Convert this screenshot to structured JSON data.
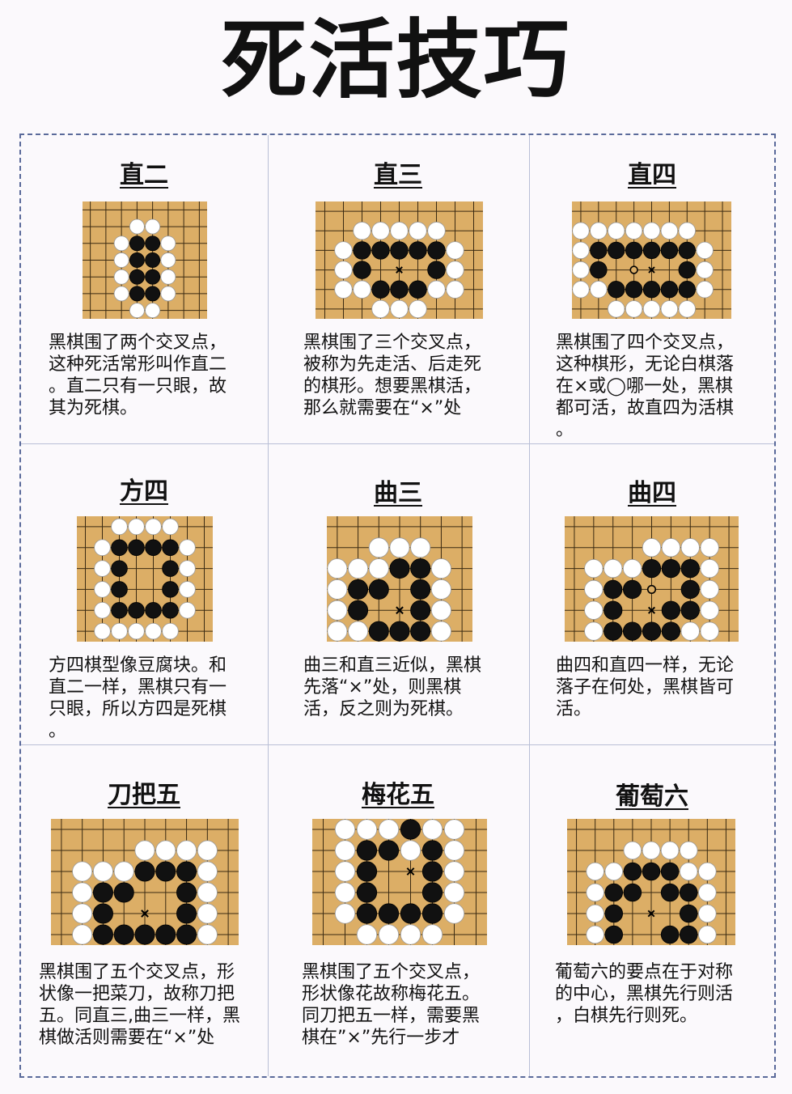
{
  "page": {
    "title": "死活技巧"
  },
  "colors": {
    "board": "#dcae66",
    "grid": "#3a2a12",
    "black": "#111111",
    "white": "#ffffff"
  },
  "cells": [
    {
      "title": "直二",
      "text": "黑棋围了两个交叉点，\n这种死活常形叫作直二\n。直二只有一只眼，故\n其为死棋。",
      "board": {
        "cols": 8,
        "rows": 7,
        "stones": [
          [
            "W",
            3,
            1
          ],
          [
            "W",
            4,
            1
          ],
          [
            "W",
            2,
            2
          ],
          [
            "B",
            3,
            2
          ],
          [
            "B",
            4,
            2
          ],
          [
            "W",
            5,
            2
          ],
          [
            "W",
            2,
            3
          ],
          [
            "B",
            3,
            3
          ],
          [
            "B",
            4,
            3
          ],
          [
            "W",
            5,
            3
          ],
          [
            "W",
            2,
            4
          ],
          [
            "B",
            3,
            4
          ],
          [
            "B",
            4,
            4
          ],
          [
            "W",
            5,
            4
          ],
          [
            "W",
            2,
            5
          ],
          [
            "B",
            3,
            5
          ],
          [
            "B",
            4,
            5
          ],
          [
            "W",
            5,
            5
          ],
          [
            "W",
            3,
            6
          ],
          [
            "W",
            4,
            6
          ]
        ],
        "marks": []
      }
    },
    {
      "title": "直三",
      "text": "黑棋围了三个交叉点，\n被称为先走活、后走死\n的棋形。想要黑棋活，\n那么就需要在“×”处",
      "board": {
        "cols": 9,
        "rows": 6,
        "stones": [
          [
            "W",
            2,
            1
          ],
          [
            "W",
            3,
            1
          ],
          [
            "W",
            4,
            1
          ],
          [
            "W",
            5,
            1
          ],
          [
            "W",
            6,
            1
          ],
          [
            "W",
            1,
            2
          ],
          [
            "B",
            2,
            2
          ],
          [
            "B",
            3,
            2
          ],
          [
            "B",
            4,
            2
          ],
          [
            "B",
            5,
            2
          ],
          [
            "B",
            6,
            2
          ],
          [
            "W",
            7,
            2
          ],
          [
            "W",
            1,
            3
          ],
          [
            "B",
            2,
            3
          ],
          [
            "B",
            6,
            3
          ],
          [
            "W",
            7,
            3
          ],
          [
            "W",
            1,
            4
          ],
          [
            "W",
            2,
            4
          ],
          [
            "B",
            3,
            4
          ],
          [
            "B",
            4,
            4
          ],
          [
            "B",
            5,
            4
          ],
          [
            "W",
            6,
            4
          ],
          [
            "W",
            7,
            4
          ],
          [
            "W",
            3,
            5
          ],
          [
            "W",
            4,
            5
          ],
          [
            "W",
            5,
            5
          ]
        ],
        "marks": [
          [
            "x",
            4,
            3
          ]
        ]
      }
    },
    {
      "title": "直四",
      "text": "黑棋围了四个交叉点，\n这种棋形，无论白棋落\n在×或◯哪一处，黑棋\n都可活，故直四为活棋\n。",
      "board": {
        "cols": 9,
        "rows": 6,
        "stones": [
          [
            "W",
            0,
            1
          ],
          [
            "W",
            1,
            1
          ],
          [
            "W",
            2,
            1
          ],
          [
            "W",
            3,
            1
          ],
          [
            "W",
            4,
            1
          ],
          [
            "W",
            5,
            1
          ],
          [
            "W",
            6,
            1
          ],
          [
            "W",
            0,
            2
          ],
          [
            "B",
            1,
            2
          ],
          [
            "B",
            2,
            2
          ],
          [
            "B",
            3,
            2
          ],
          [
            "B",
            4,
            2
          ],
          [
            "B",
            5,
            2
          ],
          [
            "B",
            6,
            2
          ],
          [
            "W",
            7,
            2
          ],
          [
            "W",
            0,
            3
          ],
          [
            "B",
            1,
            3
          ],
          [
            "B",
            6,
            3
          ],
          [
            "W",
            7,
            3
          ],
          [
            "W",
            0,
            4
          ],
          [
            "W",
            1,
            4
          ],
          [
            "B",
            2,
            4
          ],
          [
            "B",
            3,
            4
          ],
          [
            "B",
            4,
            4
          ],
          [
            "B",
            5,
            4
          ],
          [
            "B",
            6,
            4
          ],
          [
            "W",
            7,
            4
          ],
          [
            "W",
            2,
            5
          ],
          [
            "W",
            3,
            5
          ],
          [
            "W",
            4,
            5
          ],
          [
            "W",
            5,
            5
          ],
          [
            "W",
            6,
            5
          ]
        ],
        "marks": [
          [
            "o",
            3,
            3
          ],
          [
            "x",
            4,
            3
          ]
        ]
      }
    },
    {
      "title": "方四",
      "text": "方四棋型像豆腐块。和\n直二一样，黑棋只有一\n只眼，所以方四是死棋\n。",
      "board": {
        "cols": 8,
        "rows": 6,
        "stones": [
          [
            "W",
            2,
            0
          ],
          [
            "W",
            3,
            0
          ],
          [
            "W",
            4,
            0
          ],
          [
            "W",
            5,
            0
          ],
          [
            "W",
            1,
            1
          ],
          [
            "B",
            2,
            1
          ],
          [
            "B",
            3,
            1
          ],
          [
            "B",
            4,
            1
          ],
          [
            "B",
            5,
            1
          ],
          [
            "W",
            6,
            1
          ],
          [
            "W",
            1,
            2
          ],
          [
            "B",
            2,
            2
          ],
          [
            "B",
            5,
            2
          ],
          [
            "W",
            6,
            2
          ],
          [
            "W",
            1,
            3
          ],
          [
            "B",
            2,
            3
          ],
          [
            "B",
            5,
            3
          ],
          [
            "W",
            6,
            3
          ],
          [
            "W",
            1,
            4
          ],
          [
            "B",
            2,
            4
          ],
          [
            "B",
            3,
            4
          ],
          [
            "B",
            4,
            4
          ],
          [
            "B",
            5,
            4
          ],
          [
            "W",
            6,
            4
          ],
          [
            "W",
            1,
            5
          ],
          [
            "W",
            2,
            5
          ],
          [
            "W",
            3,
            5
          ],
          [
            "W",
            4,
            5
          ],
          [
            "W",
            5,
            5
          ]
        ],
        "marks": []
      }
    },
    {
      "title": "曲三",
      "text": "曲三和直三近似，黑棋\n先落“×”处，则黑棋\n活，反之则为死棋。",
      "board": {
        "cols": 7,
        "rows": 6,
        "stones": [
          [
            "W",
            2,
            1
          ],
          [
            "W",
            3,
            1
          ],
          [
            "W",
            4,
            1
          ],
          [
            "W",
            0,
            2
          ],
          [
            "W",
            1,
            2
          ],
          [
            "W",
            2,
            2
          ],
          [
            "B",
            3,
            2
          ],
          [
            "B",
            4,
            2
          ],
          [
            "W",
            5,
            2
          ],
          [
            "W",
            0,
            3
          ],
          [
            "B",
            1,
            3
          ],
          [
            "B",
            2,
            3
          ],
          [
            "B",
            4,
            3
          ],
          [
            "W",
            5,
            3
          ],
          [
            "W",
            0,
            4
          ],
          [
            "B",
            1,
            4
          ],
          [
            "B",
            4,
            4
          ],
          [
            "W",
            5,
            4
          ],
          [
            "W",
            0,
            5
          ],
          [
            "W",
            1,
            5
          ],
          [
            "B",
            2,
            5
          ],
          [
            "B",
            3,
            5
          ],
          [
            "B",
            4,
            5
          ],
          [
            "W",
            5,
            5
          ]
        ],
        "marks": [
          [
            "x",
            3,
            4
          ]
        ]
      }
    },
    {
      "title": "曲四",
      "text": "曲四和直四一样，无论\n落子在何处，黑棋皆可\n活。",
      "board": {
        "cols": 9,
        "rows": 6,
        "stones": [
          [
            "W",
            4,
            1
          ],
          [
            "W",
            5,
            1
          ],
          [
            "W",
            6,
            1
          ],
          [
            "W",
            7,
            1
          ],
          [
            "W",
            1,
            2
          ],
          [
            "W",
            2,
            2
          ],
          [
            "W",
            3,
            2
          ],
          [
            "B",
            4,
            2
          ],
          [
            "B",
            5,
            2
          ],
          [
            "B",
            6,
            2
          ],
          [
            "W",
            7,
            2
          ],
          [
            "W",
            1,
            3
          ],
          [
            "B",
            2,
            3
          ],
          [
            "B",
            3,
            3
          ],
          [
            "B",
            6,
            3
          ],
          [
            "W",
            7,
            3
          ],
          [
            "W",
            1,
            4
          ],
          [
            "B",
            2,
            4
          ],
          [
            "B",
            5,
            4
          ],
          [
            "B",
            6,
            4
          ],
          [
            "W",
            7,
            4
          ],
          [
            "W",
            1,
            5
          ],
          [
            "B",
            2,
            5
          ],
          [
            "B",
            3,
            5
          ],
          [
            "B",
            4,
            5
          ],
          [
            "B",
            5,
            5
          ],
          [
            "W",
            6,
            5
          ],
          [
            "W",
            7,
            5
          ]
        ],
        "marks": [
          [
            "o",
            4,
            3
          ],
          [
            "x",
            4,
            4
          ]
        ]
      }
    },
    {
      "title": "刀把五",
      "text": "黑棋围了五个交叉点，形\n状像一把菜刀，故称刀把\n五。同直三,曲三一样，黑\n棋做活则需要在“×”处",
      "board": {
        "cols": 9,
        "rows": 6,
        "stones": [
          [
            "W",
            4,
            1
          ],
          [
            "W",
            5,
            1
          ],
          [
            "W",
            6,
            1
          ],
          [
            "W",
            7,
            1
          ],
          [
            "W",
            1,
            2
          ],
          [
            "W",
            2,
            2
          ],
          [
            "W",
            3,
            2
          ],
          [
            "B",
            4,
            2
          ],
          [
            "B",
            5,
            2
          ],
          [
            "B",
            6,
            2
          ],
          [
            "W",
            7,
            2
          ],
          [
            "W",
            1,
            3
          ],
          [
            "B",
            2,
            3
          ],
          [
            "B",
            3,
            3
          ],
          [
            "B",
            6,
            3
          ],
          [
            "W",
            7,
            3
          ],
          [
            "W",
            1,
            4
          ],
          [
            "B",
            2,
            4
          ],
          [
            "B",
            6,
            4
          ],
          [
            "W",
            7,
            4
          ],
          [
            "W",
            1,
            5
          ],
          [
            "B",
            2,
            5
          ],
          [
            "B",
            3,
            5
          ],
          [
            "B",
            4,
            5
          ],
          [
            "B",
            5,
            5
          ],
          [
            "B",
            6,
            5
          ],
          [
            "W",
            7,
            5
          ]
        ],
        "marks": [
          [
            "x",
            4,
            4
          ]
        ]
      }
    },
    {
      "title": "梅花五",
      "text": "黑棋围了五个交叉点，\n形状像花故称梅花五。\n同刀把五一样，需要黑\n棋在”×”先行一步才",
      "board": {
        "cols": 8,
        "rows": 6,
        "stones": [
          [
            "W",
            1,
            0
          ],
          [
            "W",
            2,
            0
          ],
          [
            "W",
            3,
            0
          ],
          [
            "B",
            4,
            0
          ],
          [
            "W",
            5,
            0
          ],
          [
            "W",
            6,
            0
          ],
          [
            "W",
            1,
            1
          ],
          [
            "B",
            2,
            1
          ],
          [
            "B",
            3,
            1
          ],
          [
            "W",
            4,
            1
          ],
          [
            "B",
            5,
            1
          ],
          [
            "W",
            6,
            1
          ],
          [
            "W",
            1,
            2
          ],
          [
            "B",
            2,
            2
          ],
          [
            "B",
            5,
            2
          ],
          [
            "W",
            6,
            2
          ],
          [
            "W",
            1,
            3
          ],
          [
            "B",
            2,
            3
          ],
          [
            "B",
            5,
            3
          ],
          [
            "W",
            6,
            3
          ],
          [
            "W",
            1,
            4
          ],
          [
            "B",
            2,
            4
          ],
          [
            "B",
            3,
            4
          ],
          [
            "B",
            4,
            4
          ],
          [
            "B",
            5,
            4
          ],
          [
            "W",
            6,
            4
          ],
          [
            "W",
            2,
            5
          ],
          [
            "W",
            3,
            5
          ],
          [
            "W",
            4,
            5
          ],
          [
            "W",
            5,
            5
          ]
        ],
        "marks": [
          [
            "x",
            4,
            2
          ]
        ]
      }
    },
    {
      "title": "葡萄六",
      "text": "葡萄六的要点在于对称\n的中心，黑棋先行则活\n，白棋先行则死。",
      "board": {
        "cols": 9,
        "rows": 6,
        "stones": [
          [
            "W",
            3,
            1
          ],
          [
            "W",
            4,
            1
          ],
          [
            "W",
            5,
            1
          ],
          [
            "W",
            6,
            1
          ],
          [
            "W",
            1,
            2
          ],
          [
            "W",
            2,
            2
          ],
          [
            "B",
            3,
            2
          ],
          [
            "B",
            4,
            2
          ],
          [
            "B",
            5,
            2
          ],
          [
            "W",
            6,
            2
          ],
          [
            "W",
            7,
            2
          ],
          [
            "W",
            1,
            3
          ],
          [
            "B",
            2,
            3
          ],
          [
            "B",
            3,
            3
          ],
          [
            "B",
            5,
            3
          ],
          [
            "B",
            6,
            3
          ],
          [
            "W",
            7,
            3
          ],
          [
            "W",
            1,
            4
          ],
          [
            "B",
            2,
            4
          ],
          [
            "B",
            6,
            4
          ],
          [
            "W",
            7,
            4
          ],
          [
            "W",
            1,
            5
          ],
          [
            "B",
            2,
            5
          ],
          [
            "B",
            5,
            5
          ],
          [
            "B",
            6,
            5
          ],
          [
            "W",
            7,
            5
          ]
        ],
        "marks": [
          [
            "x",
            4,
            4
          ]
        ]
      }
    }
  ]
}
